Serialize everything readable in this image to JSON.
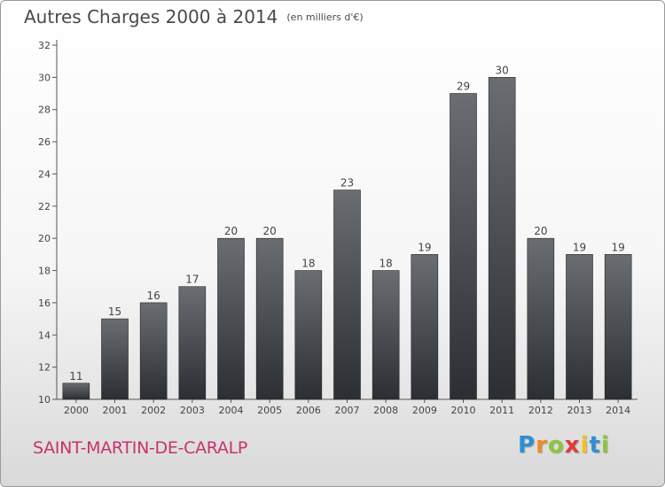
{
  "title": "Autres Charges 2000 à 2014",
  "unit_note": "(en milliers d'€)",
  "commune": "SAINT-MARTIN-DE-CARALP",
  "logo": {
    "letters": [
      "P",
      "r",
      "o",
      "x",
      "i",
      "t",
      "i"
    ],
    "colors": [
      "#2f8fd4",
      "#f08a24",
      "#8cc63f",
      "#e23a3a",
      "#f4c21b",
      "#2f8fd4",
      "#8cc63f"
    ]
  },
  "chart_data": {
    "type": "bar",
    "categories": [
      "2000",
      "2001",
      "2002",
      "2003",
      "2004",
      "2005",
      "2006",
      "2007",
      "2008",
      "2009",
      "2010",
      "2011",
      "2012",
      "2013",
      "2014"
    ],
    "values": [
      11,
      15,
      16,
      17,
      20,
      20,
      18,
      23,
      18,
      19,
      29,
      30,
      20,
      19,
      19
    ],
    "title": "Autres Charges 2000 à 2014",
    "xlabel": "",
    "ylabel": "",
    "ylim": [
      10,
      32
    ],
    "yticks": [
      10,
      12,
      14,
      16,
      18,
      20,
      22,
      24,
      26,
      28,
      30,
      32
    ],
    "grid": false,
    "data_labels": true,
    "bar_color_top": "#6a6e73",
    "bar_color_bottom": "#2b2f34"
  }
}
